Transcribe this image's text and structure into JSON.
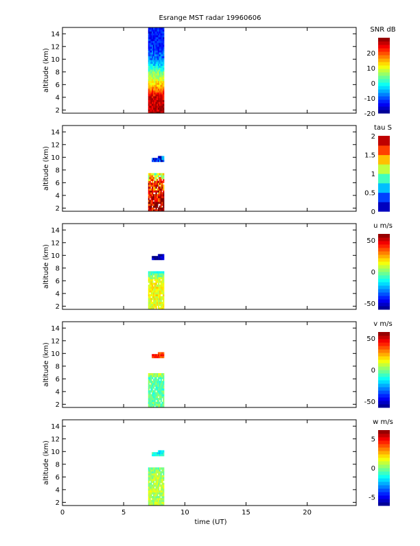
{
  "chart_data": {
    "type": "heatmap",
    "title": "Esrange MST radar 19960606",
    "xlabel": "time (UT)",
    "xlim": [
      0,
      24
    ],
    "xticks": [
      0,
      5,
      10,
      15,
      20
    ],
    "ylabel": "altitude (km)",
    "ylim": [
      1.5,
      15
    ],
    "yticks": [
      2,
      4,
      6,
      8,
      10,
      12,
      14
    ],
    "data_time_range_hours": [
      7.0,
      8.3
    ],
    "panels": [
      {
        "variable": "SNR dB",
        "clim": [
          -20,
          30
        ],
        "cticks": [
          -20,
          -10,
          0,
          10,
          20
        ],
        "coverage": [
          [
            1.5,
            15
          ]
        ],
        "profile_altitudes": [
          2,
          4,
          6,
          8,
          10,
          12,
          14
        ],
        "profile_values": [
          27,
          25,
          13,
          3,
          -8,
          -12,
          -13
        ]
      },
      {
        "variable": "tau S",
        "clim": [
          0,
          2
        ],
        "cticks": [
          0,
          0.5,
          1,
          1.5,
          2
        ],
        "coverage": [
          [
            1.5,
            7.2
          ],
          [
            9.2,
            10.2
          ]
        ],
        "profile_altitudes": [
          2,
          4,
          6,
          9.5
        ],
        "profile_values": [
          1.9,
          1.8,
          1.6,
          0.3
        ]
      },
      {
        "variable": "u m/s",
        "clim": [
          -60,
          60
        ],
        "cticks": [
          -50,
          0,
          50
        ],
        "coverage": [
          [
            1.5,
            7.2
          ],
          [
            9.2,
            10.2
          ]
        ],
        "profile_altitudes": [
          2,
          4,
          6,
          9.5
        ],
        "profile_values": [
          12,
          14,
          13,
          -55
        ]
      },
      {
        "variable": "v m/s",
        "clim": [
          -60,
          60
        ],
        "cticks": [
          -50,
          0,
          50
        ],
        "coverage": [
          [
            1.5,
            6.8
          ],
          [
            9.2,
            10.2
          ]
        ],
        "profile_altitudes": [
          2,
          4,
          6,
          9.5
        ],
        "profile_values": [
          -3,
          -5,
          -4,
          40
        ]
      },
      {
        "variable": "w m/s",
        "clim": [
          -6.5,
          6.5
        ],
        "cticks": [
          -5,
          0,
          5
        ],
        "coverage": [
          [
            1.5,
            7.2
          ],
          [
            9.2,
            10.2
          ]
        ],
        "profile_altitudes": [
          2,
          4,
          6,
          9.5
        ],
        "profile_values": [
          0.6,
          0.8,
          0.5,
          -1.5
        ]
      }
    ]
  }
}
